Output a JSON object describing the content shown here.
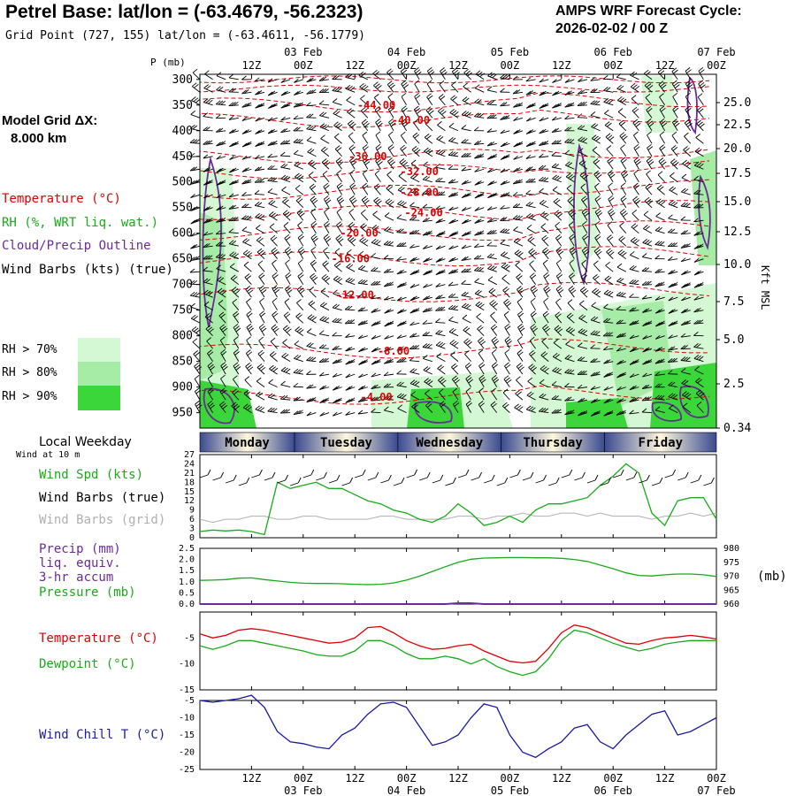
{
  "header": {
    "title": "Petrel Base:  lat/lon = (-63.4679, -56.2323)",
    "subtitle": "Grid Point (727, 155) lat/lon = (-63.4611, -56.1779)",
    "cycle_label": "AMPS WRF Forecast Cycle:",
    "cycle_value": "2026-02-02 / 00  Z"
  },
  "left_panel": {
    "grid_label": "Model Grid ΔX:",
    "grid_value": "8.000 km",
    "legend": [
      {
        "label": "Temperature (°C)",
        "color": "#e00000"
      },
      {
        "label": "RH (%, WRT liq. wat.)",
        "color": "#1aaa1a"
      },
      {
        "label": "Cloud/Precip Outline",
        "color": "#6a2a9a"
      },
      {
        "label": "Wind Barbs (kts) (true)",
        "color": "#000000"
      }
    ],
    "rh_levels": [
      {
        "label": "RH > 70%",
        "color": "#d4f8d4"
      },
      {
        "label": "RH > 80%",
        "color": "#a6eba6"
      },
      {
        "label": "RH > 90%",
        "color": "#3ad63a"
      }
    ]
  },
  "chart_data": [
    {
      "type": "heatmap",
      "name": "time-height cross-section",
      "ylabel": "P (mb)",
      "y_right_label": "Kft MSL",
      "pressure_ticks": [
        300,
        350,
        400,
        450,
        500,
        550,
        600,
        650,
        700,
        750,
        800,
        850,
        900,
        950
      ],
      "height_ticks": [
        "25.0",
        "22.5",
        "20.0",
        "17.5",
        "15.0",
        "12.5",
        "10.0",
        "7.5",
        "5.0",
        "2.5",
        "0.34"
      ],
      "top_hour_ticks": [
        "12Z",
        "00Z",
        "12Z",
        "00Z",
        "12Z",
        "00Z",
        "12Z",
        "00Z",
        "12Z",
        "00Z"
      ],
      "top_date_ticks": [
        "03 Feb",
        "04 Feb",
        "05 Feb",
        "06 Feb",
        "07 Feb"
      ],
      "temperature_labels": [
        "-44.00",
        "-40.00",
        "-36.00",
        "-32.00",
        "-28.00",
        "-24.00",
        "-20.00",
        "-16.00",
        "-12.00",
        "-8.00",
        "-4.00"
      ],
      "temperature_label_pressure": [
        350,
        380,
        450,
        480,
        520,
        560,
        600,
        650,
        720,
        830,
        920
      ],
      "temperature_label_hour": [
        41,
        49,
        39,
        51,
        51,
        52,
        37,
        35,
        36,
        45,
        41
      ]
    },
    {
      "type": "line",
      "name": "wind speed",
      "ylim": [
        0,
        27
      ],
      "yticks": [
        0,
        3,
        6,
        9,
        12,
        15,
        18,
        21,
        24,
        27
      ],
      "x_hours": [
        0,
        3,
        6,
        9,
        12,
        15,
        18,
        21,
        24,
        27,
        30,
        33,
        36,
        39,
        42,
        45,
        48,
        51,
        54,
        57,
        60,
        63,
        66,
        69,
        72,
        75,
        78,
        81,
        84,
        87,
        90,
        93,
        96,
        99,
        102,
        105,
        108,
        111,
        114,
        117,
        120
      ],
      "series": [
        {
          "name": "Wind Spd (kts)",
          "color": "#1aaa1a",
          "values": [
            2,
            2.5,
            2.2,
            2.5,
            2,
            1,
            18,
            16,
            17,
            18,
            16,
            16,
            14,
            12,
            11,
            9,
            8,
            6,
            5,
            7,
            11,
            8,
            4,
            5,
            7,
            5,
            9,
            11,
            11,
            12,
            13,
            17,
            20,
            24,
            21,
            8,
            4,
            12,
            13,
            13,
            6
          ]
        },
        {
          "name": "Wind Barbs (grid)",
          "color": "#b0b0b0",
          "values": [
            6,
            5,
            6,
            6,
            7,
            7,
            6,
            6,
            7,
            7,
            6,
            6,
            6,
            6,
            7,
            7,
            6,
            6,
            6,
            6,
            7,
            7,
            6,
            7,
            7,
            8,
            7,
            7,
            8,
            8,
            7,
            8,
            7,
            7,
            7,
            6,
            7,
            7,
            8,
            7,
            8
          ]
        }
      ]
    },
    {
      "type": "line",
      "name": "pressure and precip",
      "ylim_left": [
        0,
        2.5
      ],
      "yticks_left": [
        "0.0",
        "0.5",
        "1.0",
        "1.5",
        "2.0",
        "2.5"
      ],
      "ylim_right": [
        960,
        980
      ],
      "yticks_right": [
        "960",
        "965",
        "970",
        "975",
        "980"
      ],
      "x_hours": [
        0,
        3,
        6,
        9,
        12,
        15,
        18,
        21,
        24,
        27,
        30,
        33,
        36,
        39,
        42,
        45,
        48,
        51,
        54,
        57,
        60,
        63,
        66,
        69,
        72,
        75,
        78,
        81,
        84,
        87,
        90,
        93,
        96,
        99,
        102,
        105,
        108,
        111,
        114,
        117,
        120
      ],
      "series": [
        {
          "name": "Pressure (mb)",
          "color": "#1aaa1a",
          "values": [
            968.5,
            968.6,
            968.8,
            969.3,
            969.4,
            968.8,
            968.3,
            967.8,
            967.5,
            967.4,
            967.4,
            967.3,
            967.1,
            967.0,
            967.1,
            967.6,
            968.6,
            970.0,
            971.7,
            973.4,
            975.0,
            976.1,
            976.5,
            976.6,
            976.7,
            976.7,
            976.6,
            976.6,
            976.4,
            976.0,
            975.3,
            974.0,
            972.7,
            971.2,
            970.3,
            970.1,
            970.5,
            970.8,
            970.8,
            970.5,
            969.9
          ]
        },
        {
          "name": "Precip (mm)",
          "color": "#6a2a9a",
          "values": [
            0,
            0,
            0,
            0,
            0,
            0,
            0,
            0,
            0,
            0,
            0,
            0,
            0,
            0,
            0,
            0,
            0,
            0,
            0,
            0,
            0.04,
            0.04,
            0,
            0,
            0,
            0,
            0,
            0,
            0,
            0,
            0,
            0,
            0,
            0,
            0,
            0,
            0,
            0,
            0,
            0,
            0
          ]
        }
      ]
    },
    {
      "type": "line",
      "name": "temperature and dewpoint",
      "ylim": [
        -15,
        0
      ],
      "yticks": [
        -15,
        -10,
        -5
      ],
      "x_hours": [
        0,
        3,
        6,
        9,
        12,
        15,
        18,
        21,
        24,
        27,
        30,
        33,
        36,
        39,
        42,
        45,
        48,
        51,
        54,
        57,
        60,
        63,
        66,
        69,
        72,
        75,
        78,
        81,
        84,
        87,
        90,
        93,
        96,
        99,
        102,
        105,
        108,
        111,
        114,
        117,
        120
      ],
      "series": [
        {
          "name": "Temperature (°C)",
          "color": "#e00000",
          "values": [
            -4.2,
            -5,
            -4.5,
            -3.5,
            -3.2,
            -3.5,
            -4,
            -4.5,
            -5,
            -5.5,
            -6,
            -5.8,
            -5,
            -3,
            -2.8,
            -4,
            -5.5,
            -6.5,
            -7.2,
            -7,
            -6.5,
            -6.2,
            -7.5,
            -8.5,
            -9.5,
            -9.8,
            -9.5,
            -7,
            -4,
            -2.5,
            -3,
            -4,
            -5,
            -6,
            -6.2,
            -5.5,
            -5,
            -4.8,
            -4.5,
            -4.8,
            -5.2
          ]
        },
        {
          "name": "Dewpoint (°C)",
          "color": "#1aaa1a",
          "values": [
            -6.5,
            -7.2,
            -6.5,
            -5.5,
            -5.5,
            -6,
            -6.5,
            -7,
            -7.5,
            -8.2,
            -8.5,
            -8.5,
            -7.5,
            -5.5,
            -5.5,
            -6.5,
            -8,
            -9,
            -9,
            -8.5,
            -9,
            -10,
            -9,
            -10.5,
            -11.5,
            -12.2,
            -11.5,
            -9,
            -5.5,
            -3.5,
            -4,
            -5,
            -6,
            -6.8,
            -7.5,
            -7,
            -6.2,
            -5.8,
            -5.5,
            -5.5,
            -5.5
          ]
        }
      ]
    },
    {
      "type": "line",
      "name": "wind chill",
      "ylim": [
        -25,
        -5
      ],
      "yticks": [
        -25,
        -20,
        -15,
        -10,
        -5
      ],
      "x_hours": [
        0,
        3,
        6,
        9,
        12,
        15,
        18,
        21,
        24,
        27,
        30,
        33,
        36,
        39,
        42,
        45,
        48,
        51,
        54,
        57,
        60,
        63,
        66,
        69,
        72,
        75,
        78,
        81,
        84,
        87,
        90,
        93,
        96,
        99,
        102,
        105,
        108,
        111,
        114,
        117,
        120
      ],
      "series": [
        {
          "name": "Wind Chill T (°C)",
          "color": "#1a1aa0",
          "values": [
            -5,
            -5.5,
            -5,
            -4.5,
            -3.5,
            -7,
            -14,
            -17,
            -17.5,
            -18.5,
            -19,
            -15,
            -13,
            -9,
            -6,
            -5.5,
            -7,
            -12.5,
            -18,
            -17,
            -15,
            -10,
            -6,
            -7,
            -15,
            -20,
            -21.5,
            -19,
            -17,
            -13,
            -12,
            -17,
            -19,
            -15,
            -12,
            -9,
            -8,
            -15,
            -14,
            -12,
            -10
          ]
        }
      ]
    }
  ],
  "bottom_axis": {
    "hour_ticks": [
      "12Z",
      "00Z",
      "12Z",
      "00Z",
      "12Z",
      "00Z",
      "12Z",
      "00Z",
      "12Z",
      "00Z"
    ],
    "date_ticks": [
      "03 Feb",
      "04 Feb",
      "05 Feb",
      "06 Feb",
      "07 Feb"
    ]
  },
  "weekday_band": {
    "title": "Local Weekday",
    "note": "Wind at 10 m",
    "days": [
      "Monday",
      "Tuesday",
      "Wednesday",
      "Thursday",
      "Friday"
    ]
  },
  "panel_labels": {
    "wind_spd": "Wind Spd (kts)",
    "wind_barbs_true": "Wind Barbs (true)",
    "wind_barbs_grid": "Wind Barbs (grid)",
    "precip_lines": [
      "Precip (mm)",
      "liq. equiv.",
      "3-hr accum"
    ],
    "pressure": "Pressure (mb)",
    "mb_unit": "(mb)",
    "temperature": "Temperature (°C)",
    "dewpoint": "Dewpoint (°C)",
    "wind_chill": "Wind Chill T (°C)"
  },
  "colors": {
    "temp": "#e00000",
    "rh": "#1aaa1a",
    "cloud": "#6a2a9a",
    "grid_barb": "#b0b0b0",
    "chill": "#1a1aa0",
    "band_dark": "#3a4a90",
    "band_light": "#fff7dc"
  }
}
